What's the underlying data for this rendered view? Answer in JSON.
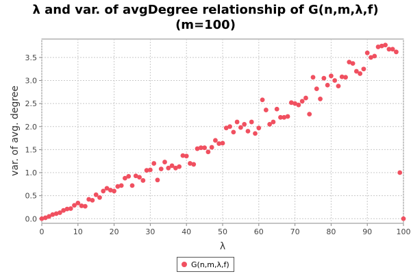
{
  "chart_data": {
    "type": "scatter",
    "title_line1": "λ and var. of avgDegree relationship of G(n,m,λ,f)",
    "title_line2": "(m=100)",
    "xlabel": "λ",
    "ylabel": "var. of avg. degree",
    "xlim": [
      0,
      100
    ],
    "ylim": [
      -0.1,
      3.9
    ],
    "x_ticks": [
      0,
      10,
      20,
      30,
      40,
      50,
      60,
      70,
      80,
      90,
      100
    ],
    "y_ticks": [
      0.0,
      0.5,
      1.0,
      1.5,
      2.0,
      2.5,
      3.0,
      3.5
    ],
    "y_tick_labels": [
      "0.0",
      "0.5",
      "1.0",
      "1.5",
      "2.0",
      "2.5",
      "3.0",
      "3.5"
    ],
    "grid": true,
    "legend_position": "bottom-center",
    "series": [
      {
        "name": "G(n,m,λ,f)",
        "color": "#f05060",
        "x": [
          0,
          1,
          2,
          3,
          4,
          5,
          6,
          7,
          8,
          9,
          10,
          11,
          12,
          13,
          14,
          15,
          16,
          17,
          18,
          19,
          20,
          21,
          22,
          23,
          24,
          25,
          26,
          27,
          28,
          29,
          30,
          31,
          32,
          33,
          34,
          35,
          36,
          37,
          38,
          39,
          40,
          41,
          42,
          43,
          44,
          45,
          46,
          47,
          48,
          49,
          50,
          51,
          52,
          53,
          54,
          55,
          56,
          57,
          58,
          59,
          60,
          61,
          62,
          63,
          64,
          65,
          66,
          67,
          68,
          69,
          70,
          71,
          72,
          73,
          74,
          75,
          76,
          77,
          78,
          79,
          80,
          81,
          82,
          83,
          84,
          85,
          86,
          87,
          88,
          89,
          90,
          91,
          92,
          93,
          94,
          95,
          96,
          97,
          98,
          99,
          100
        ],
        "y": [
          0.0,
          0.02,
          0.05,
          0.09,
          0.11,
          0.13,
          0.18,
          0.21,
          0.22,
          0.29,
          0.34,
          0.28,
          0.27,
          0.42,
          0.4,
          0.52,
          0.46,
          0.6,
          0.66,
          0.62,
          0.6,
          0.7,
          0.72,
          0.88,
          0.92,
          0.72,
          0.93,
          0.9,
          0.83,
          1.05,
          1.06,
          1.2,
          0.84,
          1.08,
          1.23,
          1.1,
          1.15,
          1.1,
          1.13,
          1.37,
          1.36,
          1.2,
          1.18,
          1.52,
          1.54,
          1.54,
          1.45,
          1.55,
          1.7,
          1.63,
          1.64,
          1.97,
          2.0,
          1.88,
          2.1,
          1.98,
          2.05,
          1.9,
          2.1,
          1.85,
          1.97,
          2.58,
          2.36,
          2.05,
          2.1,
          2.38,
          2.2,
          2.2,
          2.22,
          2.52,
          2.5,
          2.47,
          2.55,
          2.62,
          2.27,
          3.07,
          2.82,
          2.6,
          3.05,
          2.9,
          3.1,
          3.0,
          2.88,
          3.08,
          3.07,
          3.4,
          3.37,
          3.2,
          3.15,
          3.25,
          3.6,
          3.5,
          3.53,
          3.73,
          3.75,
          3.77,
          3.68,
          3.68,
          3.62,
          1.0,
          0.0
        ]
      }
    ]
  }
}
